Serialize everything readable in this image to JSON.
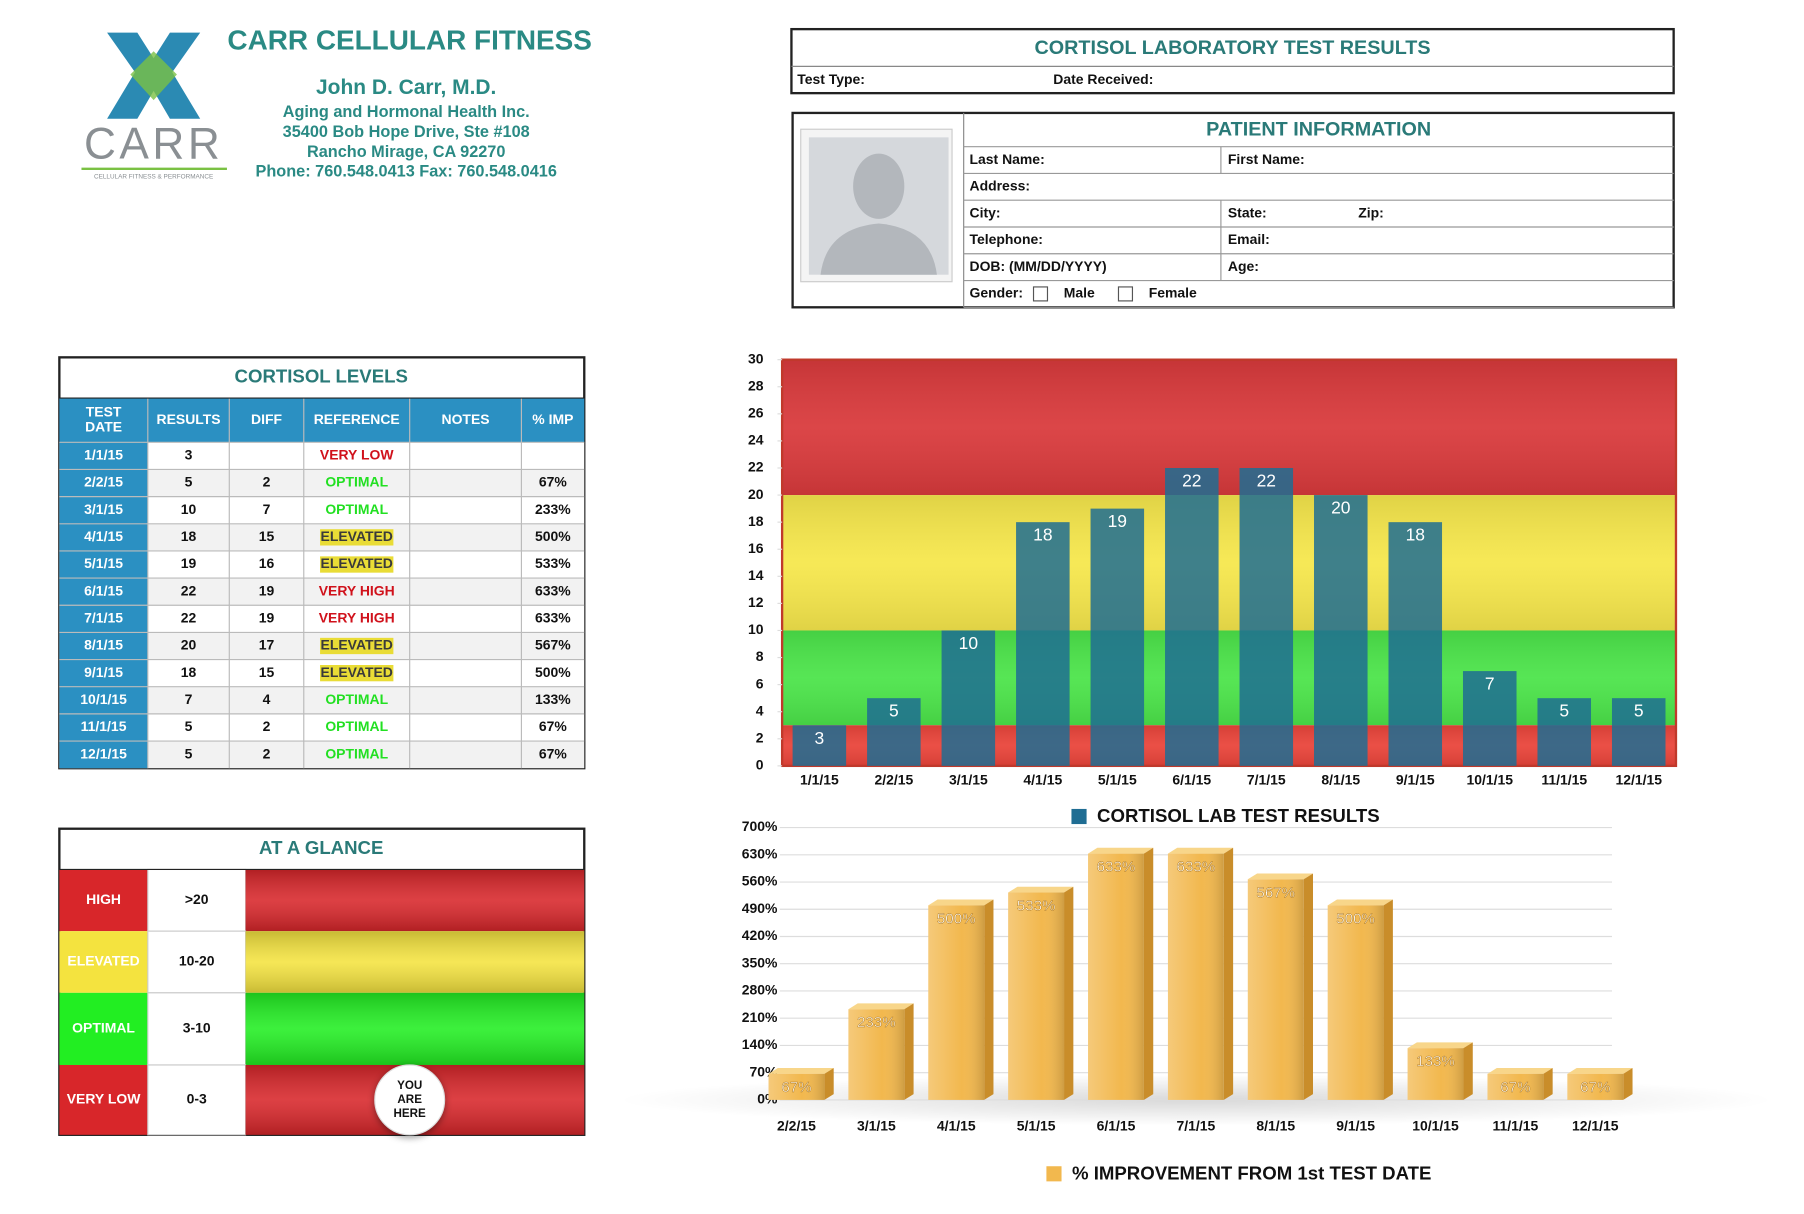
{
  "header": {
    "title": "CARR CELLULAR FITNESS",
    "name": "John D. Carr, M.D.",
    "org": "Aging and Hormonal Health Inc.",
    "address": "35400 Bob Hope Drive, Ste #108",
    "city": "Rancho Mirage, CA 92270",
    "phone": "Phone: 760.548.0413  Fax: 760.548.0416",
    "logo_text": "CARR",
    "logo_sub": "CELLULAR FITNESS & PERFORMANCE"
  },
  "lab": {
    "title": "CORTISOL LABORATORY TEST RESULTS",
    "fields": [
      "Test Type:",
      "Date Received:"
    ]
  },
  "patient": {
    "title": "PATIENT INFORMATION",
    "rows": [
      [
        "Last Name:",
        "First Name:"
      ],
      [
        "Address:"
      ],
      [
        "City:",
        "State:",
        "Zip:"
      ],
      [
        "Telephone:",
        "Email:"
      ],
      [
        "DOB: (MM/DD/YYYY)",
        "Age:"
      ]
    ],
    "gender": {
      "label": "Gender:",
      "options": [
        "Male",
        "Female"
      ]
    }
  },
  "levels": {
    "title": "CORTISOL LEVELS",
    "columns": [
      [
        "TEST",
        "DATE"
      ],
      [
        "RESULTS"
      ],
      [
        "DIFF"
      ],
      [
        "REFERENCE"
      ],
      [
        "NOTES"
      ],
      [
        "% IMP"
      ]
    ],
    "rows": [
      {
        "date": "1/1/15",
        "result": 3,
        "reference": "VERY LOW",
        "ref_color": "#d0111b"
      },
      {
        "date": "2/2/15",
        "result": 5,
        "diff": 2,
        "reference": "OPTIMAL",
        "ref_color": "#22e022",
        "imp": "67%"
      },
      {
        "date": "3/1/15",
        "result": 10,
        "diff": 7,
        "reference": "OPTIMAL",
        "ref_color": "#22e022",
        "imp": "233%"
      },
      {
        "date": "4/1/15",
        "result": 18,
        "diff": 15,
        "reference": "ELEVATED",
        "ref_color": "#3a3a3a",
        "ref_bg": "#e9dc36",
        "imp": "500%"
      },
      {
        "date": "5/1/15",
        "result": 19,
        "diff": 16,
        "reference": "ELEVATED",
        "ref_color": "#3a3a3a",
        "ref_bg": "#e9dc36",
        "imp": "533%"
      },
      {
        "date": "6/1/15",
        "result": 22,
        "diff": 19,
        "reference": "VERY HIGH",
        "ref_color": "#d0111b",
        "imp": "633%"
      },
      {
        "date": "7/1/15",
        "result": 22,
        "diff": 19,
        "reference": "VERY HIGH",
        "ref_color": "#d0111b",
        "imp": "633%"
      },
      {
        "date": "8/1/15",
        "result": 20,
        "diff": 17,
        "reference": "ELEVATED",
        "ref_color": "#3a3a3a",
        "ref_bg": "#e9dc36",
        "imp": "567%"
      },
      {
        "date": "9/1/15",
        "result": 18,
        "diff": 15,
        "reference": "ELEVATED",
        "ref_color": "#3a3a3a",
        "ref_bg": "#e9dc36",
        "imp": "500%"
      },
      {
        "date": "10/1/15",
        "result": 7,
        "diff": 4,
        "reference": "OPTIMAL",
        "ref_color": "#22e022",
        "imp": "133%"
      },
      {
        "date": "11/1/15",
        "result": 5,
        "diff": 2,
        "reference": "OPTIMAL",
        "ref_color": "#22e022",
        "imp": "67%"
      },
      {
        "date": "12/1/15",
        "result": 5,
        "diff": 2,
        "reference": "OPTIMAL",
        "ref_color": "#22e022",
        "imp": "67%"
      }
    ]
  },
  "glance": {
    "title": "AT A GLANCE",
    "rows": [
      {
        "label": "HIGH",
        "range": ">20",
        "color": "#d8262a"
      },
      {
        "label": "ELEVATED",
        "range": "10-20",
        "color": "#f4e33f"
      },
      {
        "label": "OPTIMAL",
        "range": "3-10",
        "color": "#22ee22"
      },
      {
        "label": "VERY LOW",
        "range": "0-3",
        "color": "#d8262a"
      }
    ],
    "marker": [
      "YOU",
      "ARE",
      "HERE"
    ]
  },
  "chart_data": [
    {
      "type": "bar",
      "categories": [
        "1/1/15",
        "2/2/15",
        "3/1/15",
        "4/1/15",
        "5/1/15",
        "6/1/15",
        "7/1/15",
        "8/1/15",
        "9/1/15",
        "10/1/15",
        "11/1/15",
        "12/1/15"
      ],
      "series": [
        {
          "name": "CORTISOL LAB TEST RESULTS",
          "color": "#1f6d93",
          "values": [
            3,
            5,
            10,
            18,
            19,
            22,
            22,
            20,
            18,
            7,
            5,
            5
          ]
        }
      ],
      "ylim": [
        0,
        30
      ],
      "yticks": [
        0,
        2,
        4,
        6,
        8,
        10,
        12,
        14,
        16,
        18,
        20,
        22,
        24,
        26,
        28,
        30
      ],
      "bands": [
        {
          "from": 20,
          "to": 30,
          "color": "#d93a3c"
        },
        {
          "from": 10,
          "to": 20,
          "color": "#f6e74c"
        },
        {
          "from": 3,
          "to": 10,
          "color": "#4ce44a"
        },
        {
          "from": 0,
          "to": 3,
          "color": "#e9443a"
        }
      ],
      "legend": "bottom"
    },
    {
      "type": "bar",
      "categories": [
        "2/2/15",
        "3/1/15",
        "4/1/15",
        "5/1/15",
        "6/1/15",
        "7/1/15",
        "8/1/15",
        "9/1/15",
        "10/1/15",
        "11/1/15",
        "12/1/15"
      ],
      "series": [
        {
          "name": "% IMPROVEMENT FROM 1st TEST DATE",
          "color": "#f2b84e",
          "values": [
            67,
            233,
            500,
            533,
            633,
            633,
            567,
            500,
            133,
            67,
            67
          ],
          "value_labels": [
            "67%",
            "233%",
            "500%",
            "533%",
            "633%",
            "633%",
            "567%",
            "500%",
            "133%",
            "67%",
            "67%"
          ]
        }
      ],
      "ylim": [
        0,
        700
      ],
      "yticks": [
        {
          "value": 0,
          "label": "0%"
        },
        {
          "value": 70,
          "label": "70%"
        },
        {
          "value": 140,
          "label": "140%"
        },
        {
          "value": 210,
          "label": "210%"
        },
        {
          "value": 280,
          "label": "280%"
        },
        {
          "value": 350,
          "label": "350%"
        },
        {
          "value": 420,
          "label": "420%"
        },
        {
          "value": 490,
          "label": "490%"
        },
        {
          "value": 560,
          "label": "560%"
        },
        {
          "value": 630,
          "label": "630%"
        },
        {
          "value": 700,
          "label": "700%"
        }
      ],
      "grid": true,
      "legend": "bottom"
    }
  ]
}
